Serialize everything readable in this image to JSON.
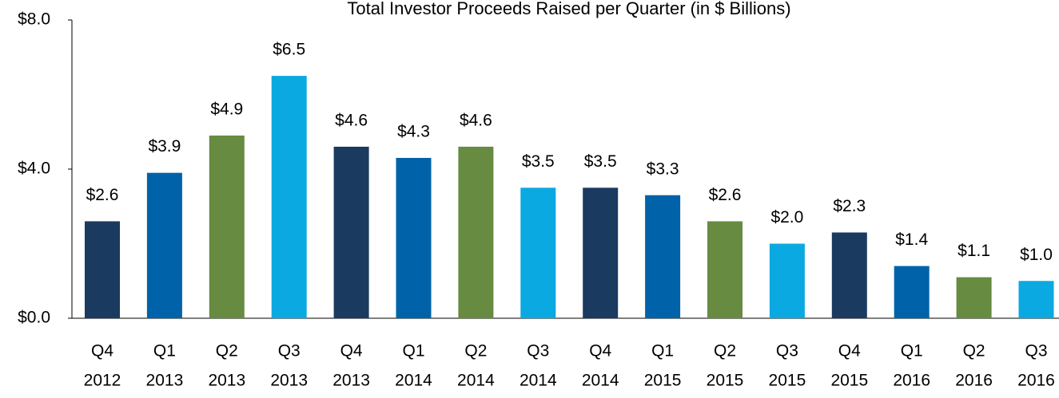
{
  "chart_data": {
    "type": "bar",
    "title": "Total Investor Proceeds Raised per Quarter (in $ Billions)",
    "categories": [
      [
        "Q4",
        "2012"
      ],
      [
        "Q1",
        "2013"
      ],
      [
        "Q2",
        "2013"
      ],
      [
        "Q3",
        "2013"
      ],
      [
        "Q4",
        "2013"
      ],
      [
        "Q1",
        "2014"
      ],
      [
        "Q2",
        "2014"
      ],
      [
        "Q3",
        "2014"
      ],
      [
        "Q4",
        "2014"
      ],
      [
        "Q1",
        "2015"
      ],
      [
        "Q2",
        "2015"
      ],
      [
        "Q3",
        "2015"
      ],
      [
        "Q4",
        "2015"
      ],
      [
        "Q1",
        "2016"
      ],
      [
        "Q2",
        "2016"
      ],
      [
        "Q3",
        "2016"
      ]
    ],
    "values": [
      2.6,
      3.9,
      4.9,
      6.5,
      4.6,
      4.3,
      4.6,
      3.5,
      3.5,
      3.3,
      2.6,
      2.0,
      2.3,
      1.4,
      1.1,
      1.0
    ],
    "value_labels": [
      "$2.6",
      "$3.9",
      "$4.9",
      "$6.5",
      "$4.6",
      "$4.3",
      "$4.6",
      "$3.5",
      "$3.5",
      "$3.3",
      "$2.6",
      "$2.0",
      "$2.3",
      "$1.4",
      "$1.1",
      "$1.0"
    ],
    "colors": [
      "#1b3a5f",
      "#0062a8",
      "#668b41",
      "#0aa9e1",
      "#1b3a5f",
      "#0062a8",
      "#668b41",
      "#0aa9e1",
      "#1b3a5f",
      "#0062a8",
      "#668b41",
      "#0aa9e1",
      "#1b3a5f",
      "#0062a8",
      "#668b41",
      "#0aa9e1"
    ],
    "ylim": [
      0,
      8
    ],
    "yticks": [
      {
        "value": 0,
        "label": "$0.0"
      },
      {
        "value": 4,
        "label": "$4.0"
      },
      {
        "value": 8,
        "label": "$8.0"
      }
    ],
    "grid": false
  }
}
